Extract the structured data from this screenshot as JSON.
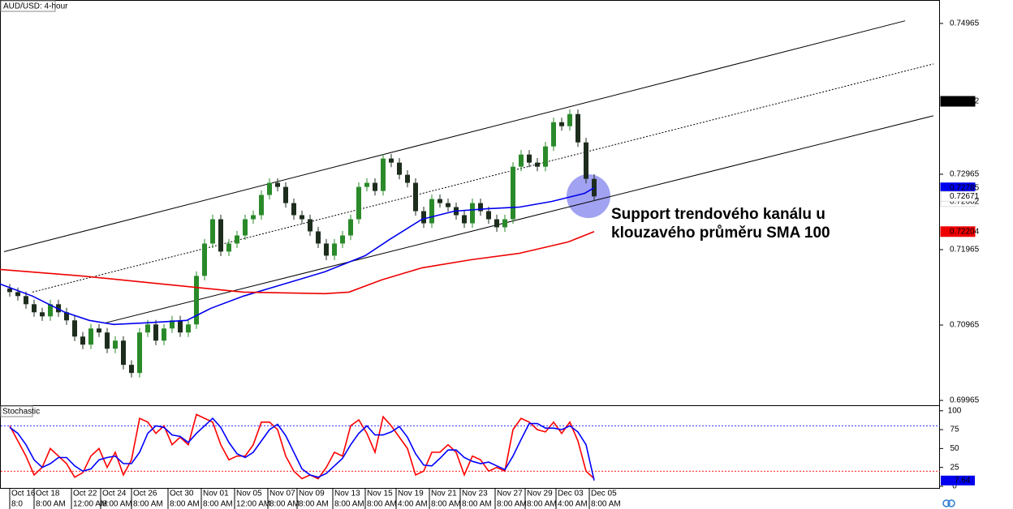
{
  "chart_data": [
    {
      "type": "candlestick",
      "title": "AUD/USD: 4-hour",
      "x": [
        0,
        1,
        2,
        3,
        4,
        5,
        6,
        7,
        8,
        9,
        10,
        11,
        12,
        13,
        14,
        15,
        16,
        17,
        18,
        19,
        20,
        21,
        22,
        23,
        24,
        25,
        26,
        27,
        28,
        29,
        30,
        31,
        32,
        33,
        34,
        35,
        36,
        37,
        38,
        39,
        40,
        41,
        42,
        43,
        44,
        45,
        46,
        47,
        48,
        49,
        50,
        51,
        52,
        53,
        54,
        55,
        56,
        57,
        58,
        59,
        60,
        61,
        62,
        63,
        64,
        65,
        66,
        67,
        68,
        69,
        70,
        71,
        72
      ],
      "open": [
        0.7145,
        0.71402,
        0.71349,
        0.71241,
        0.71134,
        0.7108,
        0.71241,
        0.71134,
        0.71027,
        0.70812,
        0.70705,
        0.70919,
        0.70866,
        0.70651,
        0.70758,
        0.70437,
        0.70329,
        0.70866,
        0.70973,
        0.70758,
        0.70919,
        0.71027,
        0.70866,
        0.70973,
        0.71617,
        0.72046,
        0.72368,
        0.71939,
        0.72046,
        0.72153,
        0.72368,
        0.72422,
        0.7269,
        0.72851,
        0.72797,
        0.72582,
        0.72422,
        0.72368,
        0.72207,
        0.72046,
        0.71885,
        0.72046,
        0.72153,
        0.72368,
        0.72797,
        0.72851,
        0.72743,
        0.73173,
        0.73119,
        0.72958,
        0.72851,
        0.72475,
        0.72314,
        0.72636,
        0.72582,
        0.72529,
        0.72422,
        0.72314,
        0.72582,
        0.72475,
        0.72368,
        0.72261,
        0.72368,
        0.73065,
        0.73226,
        0.73119,
        0.73065,
        0.73334,
        0.73655,
        0.73602,
        0.73763,
        0.73387,
        0.72904
      ],
      "high": [
        0.7151,
        0.71462,
        0.71409,
        0.71301,
        0.71194,
        0.71301,
        0.71301,
        0.71194,
        0.71087,
        0.70872,
        0.70979,
        0.70979,
        0.70926,
        0.70818,
        0.70818,
        0.70497,
        0.70926,
        0.71033,
        0.71033,
        0.70979,
        0.71087,
        0.71087,
        0.71033,
        0.71677,
        0.72106,
        0.72428,
        0.72428,
        0.72106,
        0.72213,
        0.72428,
        0.72482,
        0.7275,
        0.72911,
        0.72911,
        0.72857,
        0.72642,
        0.72482,
        0.72428,
        0.72267,
        0.72106,
        0.72106,
        0.72213,
        0.72428,
        0.72857,
        0.72911,
        0.72911,
        0.73233,
        0.73233,
        0.73179,
        0.73018,
        0.72911,
        0.72535,
        0.72696,
        0.72696,
        0.72642,
        0.72589,
        0.72482,
        0.72642,
        0.72642,
        0.72535,
        0.72428,
        0.72428,
        0.73125,
        0.73286,
        0.73286,
        0.73179,
        0.73394,
        0.73715,
        0.73715,
        0.73823,
        0.73823,
        0.73447,
        0.72964
      ],
      "low": [
        0.71342,
        0.71289,
        0.71181,
        0.71074,
        0.7102,
        0.7102,
        0.71074,
        0.70967,
        0.70752,
        0.70645,
        0.70645,
        0.70806,
        0.70591,
        0.70591,
        0.70377,
        0.70269,
        0.70269,
        0.70806,
        0.70698,
        0.70698,
        0.70859,
        0.70806,
        0.70806,
        0.70913,
        0.71557,
        0.71986,
        0.71879,
        0.71879,
        0.71986,
        0.72093,
        0.72308,
        0.72362,
        0.7263,
        0.72737,
        0.72522,
        0.72362,
        0.72308,
        0.72147,
        0.71986,
        0.71825,
        0.71825,
        0.71986,
        0.72093,
        0.72308,
        0.72737,
        0.72683,
        0.72683,
        0.73059,
        0.72898,
        0.72791,
        0.72415,
        0.72254,
        0.72254,
        0.72522,
        0.72469,
        0.72362,
        0.72254,
        0.72254,
        0.72415,
        0.72308,
        0.72201,
        0.72201,
        0.72308,
        0.73005,
        0.73059,
        0.73005,
        0.73005,
        0.73274,
        0.73542,
        0.73542,
        0.73327,
        0.72844,
        0.72611
      ],
      "close": [
        0.71402,
        0.71349,
        0.71241,
        0.71134,
        0.7108,
        0.71241,
        0.71134,
        0.71027,
        0.70812,
        0.70705,
        0.70919,
        0.70866,
        0.70651,
        0.70758,
        0.70437,
        0.70329,
        0.70866,
        0.70973,
        0.70758,
        0.70919,
        0.71027,
        0.70866,
        0.70973,
        0.71617,
        0.72046,
        0.72368,
        0.71939,
        0.72046,
        0.72153,
        0.72368,
        0.72422,
        0.7269,
        0.72851,
        0.72797,
        0.72582,
        0.72422,
        0.72368,
        0.72207,
        0.72046,
        0.71885,
        0.72046,
        0.72153,
        0.72368,
        0.72797,
        0.72851,
        0.72743,
        0.73173,
        0.73119,
        0.72958,
        0.72851,
        0.72475,
        0.72314,
        0.72636,
        0.72582,
        0.72529,
        0.72422,
        0.72314,
        0.72582,
        0.72475,
        0.72368,
        0.72261,
        0.72368,
        0.73065,
        0.73226,
        0.73119,
        0.73065,
        0.73334,
        0.73655,
        0.73602,
        0.73763,
        0.73387,
        0.72904,
        0.72671
      ],
      "up_color": "#2a8a2a",
      "down_color": "#1d2d1d",
      "lines": [
        {
          "color": "#0000ee",
          "x": [
            -1.2,
            2.8,
            6.8,
            9.8,
            12.8,
            16.8,
            21.8,
            24.8,
            28.8,
            33.8,
            38.8,
            43.8,
            46.8,
            50.8,
            54.8,
            58.8,
            62.8,
            66.8,
            70.8,
            72
          ],
          "values": [
            0.71509,
            0.71349,
            0.71134,
            0.71027,
            0.70973,
            0.70994,
            0.71027,
            0.71188,
            0.71349,
            0.71509,
            0.7167,
            0.71885,
            0.721,
            0.72368,
            0.72475,
            0.72507,
            0.72529,
            0.72604,
            0.72711,
            0.72785
          ]
        },
        {
          "color": "#ee0000",
          "x": [
            -1.2,
            8.8,
            18.8,
            28.8,
            38.8,
            41.8,
            45.8,
            50.8,
            56.8,
            62.8,
            68.8,
            72
          ],
          "values": [
            0.71703,
            0.71617,
            0.71509,
            0.71402,
            0.71381,
            0.71402,
            0.71563,
            0.71724,
            0.71831,
            0.71917,
            0.72067,
            0.72204
          ]
        }
      ],
      "channel": [
        {
          "x": [
            -0.7,
            110.3
          ],
          "values": [
            0.71938,
            0.75
          ],
          "dashed": false
        },
        {
          "x": [
            2.8,
            113.8
          ],
          "values": [
            0.71402,
            0.74428
          ],
          "dashed": true
        },
        {
          "x": [
            11.8,
            113.8
          ],
          "values": [
            0.70994,
            0.73741
          ],
          "dashed": false
        }
      ],
      "xlim": [
        -1.2,
        114.6
      ],
      "ylim": [
        0.69901,
        0.75265
      ],
      "yticks": [
        0.69965,
        0.70965,
        0.71965,
        0.72965,
        0.74965
      ],
      "price_labels": [
        {
          "value": 0.73932,
          "color": "#000000",
          "text_color": "#ffffff"
        },
        {
          "value": 0.72785,
          "color": "#0000ee",
          "text_color": "#ffffff"
        },
        {
          "value": 0.72602,
          "color": "#ffffff",
          "text_color": "#000000"
        },
        {
          "value": 0.72671,
          "color": "#ffffff",
          "text_color": "#000000"
        },
        {
          "value": 0.72204,
          "color": "#ee0000",
          "text_color": "#ffffff"
        }
      ],
      "xticks": [
        {
          "value": 0,
          "label": "Oct 16"
        },
        {
          "value": 3,
          "label": "Oct 18"
        },
        {
          "value": 7.6,
          "label": "Oct 22"
        },
        {
          "value": 11.2,
          "label": "Oct 24"
        },
        {
          "value": 15,
          "label": "Oct 26"
        },
        {
          "value": 19.5,
          "label": "Oct 30"
        },
        {
          "value": 23.6,
          "label": "Nov 01"
        },
        {
          "value": 27.7,
          "label": "Nov 05"
        },
        {
          "value": 31.8,
          "label": "Nov 07"
        },
        {
          "value": 35.4,
          "label": "Nov 09"
        },
        {
          "value": 39.8,
          "label": "Nov 13"
        },
        {
          "value": 43.8,
          "label": "Nov 15"
        },
        {
          "value": 47.6,
          "label": "Nov 19"
        },
        {
          "value": 51.7,
          "label": "Nov 21"
        },
        {
          "value": 55.5,
          "label": "Nov 23"
        },
        {
          "value": 59.8,
          "label": "Nov 27"
        },
        {
          "value": 63.5,
          "label": "Nov 29"
        },
        {
          "value": 67.3,
          "label": "Dec 03"
        },
        {
          "value": 71.4,
          "label": "Dec 05"
        }
      ],
      "xtick_times": [
        "8:0",
        "8:00 AM",
        "12:00 AM",
        "8:00 AM",
        "8:00 AM",
        "8:00 AM",
        "8:00 AM",
        "12:00 AM",
        "8:00 AM",
        "8:00 AM",
        "8:00 AM",
        "8:00 AM",
        "4:00 AM",
        "8:00 AM",
        "8:00 AM",
        "8:00 AM",
        "8:00 AM",
        "4:00 AM",
        "8:00 AM"
      ],
      "annotation": [
        "Support trendového kanálu u",
        "klouzavého průměru SMA 100"
      ]
    },
    {
      "type": "line",
      "title": "Stochastic",
      "ylim": [
        -2.2,
        106.2
      ],
      "yticks": [
        0,
        25,
        50,
        75,
        100
      ],
      "levels": [
        {
          "value": 80,
          "color": "#3030ff"
        },
        {
          "value": 20,
          "color": "#ff2020"
        }
      ],
      "series": [
        {
          "color": "#ff0000",
          "values": [
            80,
            60,
            40,
            15,
            25,
            50,
            40,
            30,
            12,
            18,
            40,
            50,
            25,
            45,
            15,
            35,
            90,
            85,
            70,
            80,
            55,
            65,
            55,
            95,
            90,
            85,
            55,
            35,
            40,
            40,
            55,
            85,
            85,
            75,
            40,
            20,
            10,
            15,
            10,
            25,
            45,
            40,
            80,
            88,
            70,
            45,
            92,
            80,
            65,
            50,
            15,
            20,
            45,
            45,
            55,
            45,
            15,
            40,
            35,
            20,
            25,
            20,
            75,
            90,
            85,
            75,
            72,
            85,
            70,
            85,
            60,
            20,
            10
          ]
        },
        {
          "color": "#0000ff",
          "values": [
            78,
            70,
            55,
            35,
            25,
            30,
            38,
            38,
            27,
            20,
            23,
            35,
            38,
            40,
            30,
            30,
            45,
            70,
            80,
            78,
            68,
            66,
            58,
            70,
            80,
            90,
            78,
            58,
            43,
            38,
            45,
            60,
            75,
            82,
            67,
            45,
            23,
            15,
            12,
            17,
            27,
            37,
            55,
            70,
            80,
            68,
            68,
            72,
            79,
            65,
            43,
            28,
            27,
            37,
            48,
            48,
            38,
            33,
            30,
            32,
            27,
            22,
            40,
            62,
            83,
            83,
            77,
            77,
            75,
            80,
            72,
            55,
            7.64
          ]
        }
      ],
      "current_label": {
        "value": 7.64,
        "color": "#0000ee",
        "text_color": "#ffffff"
      }
    }
  ]
}
